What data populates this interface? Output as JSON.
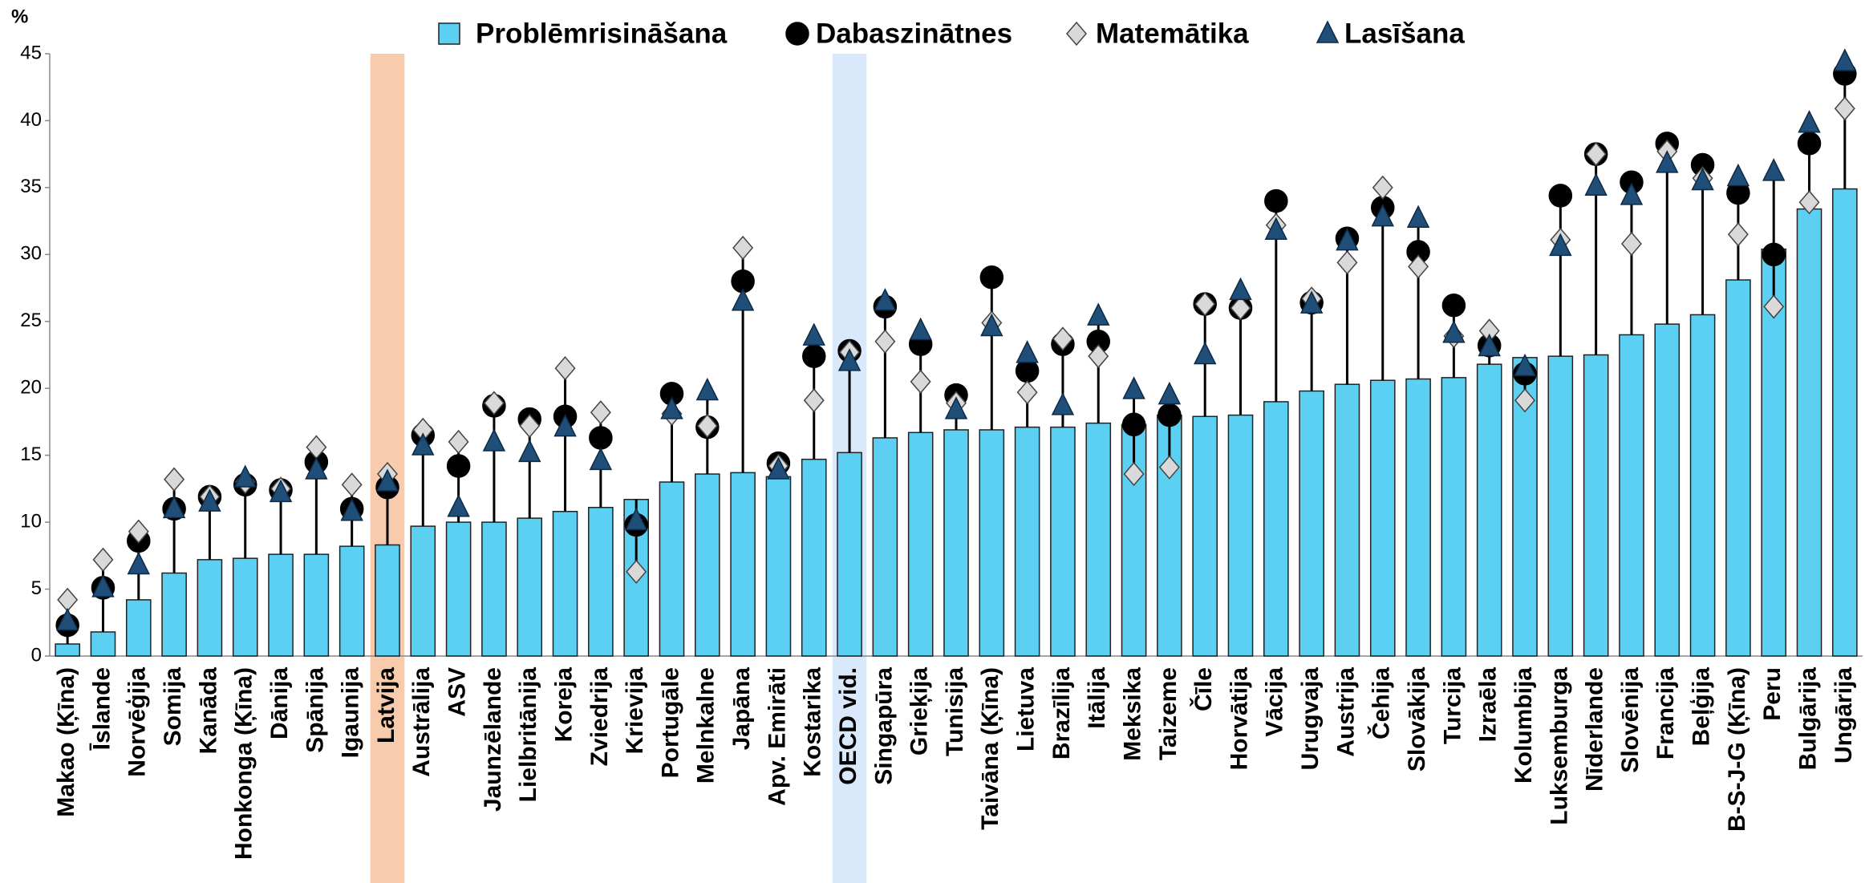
{
  "chart_data": {
    "type": "bar",
    "y_label": "%",
    "categories": [
      "Makao (Ķīna)",
      "Īslande",
      "Norvēģija",
      "Somija",
      "Kanāda",
      "Honkonga (Ķīna)",
      "Dānija",
      "Spānija",
      "Igaunija",
      "Latvija",
      "Austrālija",
      "ASV",
      "Jaunzēlande",
      "Lielbritānija",
      "Koreja",
      "Zviedrija",
      "Krievija",
      "Portugāle",
      "Melnkalne",
      "Japāna",
      "Apv. Emirāti",
      "Kostarika",
      "OECD vid.",
      "Singapūra",
      "Grieķija",
      "Tunisija",
      "Taivāna (Ķīna)",
      "Lietuva",
      "Brazīlija",
      "Itālija",
      "Meksika",
      "Taizeme",
      "Čīle",
      "Horvātija",
      "Vācija",
      "Urugvaja",
      "Austrija",
      "Čehija",
      "Slovākija",
      "Turcija",
      "Izraēla",
      "Kolumbija",
      "Luksemburga",
      "Nīderlande",
      "Slovēnija",
      "Francija",
      "Beļģija",
      "B-S-J-G (Ķīna)",
      "Peru",
      "Bulgārija",
      "Ungārija"
    ],
    "series": [
      {
        "name": "Problēmrisināšana",
        "marker": "bar",
        "color": "#5bd0f2",
        "values": [
          0.9,
          1.8,
          4.2,
          6.2,
          7.2,
          7.3,
          7.6,
          7.6,
          8.2,
          8.3,
          9.7,
          10.0,
          10.0,
          10.3,
          10.8,
          11.1,
          11.7,
          13.0,
          13.6,
          13.7,
          13.4,
          14.7,
          15.2,
          16.3,
          16.7,
          16.9,
          16.9,
          17.1,
          17.1,
          17.4,
          17.3,
          18.0,
          17.9,
          18.0,
          19.0,
          19.8,
          20.3,
          20.6,
          20.7,
          20.8,
          21.8,
          22.3,
          22.4,
          22.5,
          24.0,
          24.8,
          25.5,
          28.1,
          30.4,
          33.4,
          34.9
        ]
      },
      {
        "name": "Dabaszinātnes",
        "marker": "circle",
        "color": "#000000",
        "values": [
          2.3,
          5.1,
          8.6,
          11.0,
          11.9,
          12.8,
          12.4,
          14.5,
          11.0,
          12.6,
          16.5,
          14.2,
          18.7,
          17.7,
          17.9,
          16.3,
          9.8,
          19.6,
          17.1,
          28.0,
          14.4,
          22.4,
          22.8,
          26.1,
          23.3,
          19.5,
          28.3,
          21.3,
          23.3,
          23.5,
          17.3,
          18.0,
          26.3,
          26.0,
          34.0,
          26.4,
          31.2,
          33.5,
          30.2,
          26.2,
          23.2,
          21.1,
          34.4,
          37.5,
          35.4,
          38.3,
          36.7,
          34.6,
          30.0,
          38.3,
          43.5
        ]
      },
      {
        "name": "Matemātika",
        "marker": "diamond",
        "color": "#d9d9d9",
        "values": [
          4.2,
          7.2,
          9.3,
          13.2,
          11.9,
          13.0,
          12.5,
          15.6,
          12.8,
          13.6,
          16.9,
          16.0,
          18.9,
          17.2,
          21.5,
          18.2,
          6.3,
          18.1,
          17.2,
          30.5,
          14.2,
          19.1,
          22.7,
          23.5,
          20.5,
          18.9,
          24.9,
          19.7,
          23.7,
          22.4,
          13.6,
          14.1,
          26.3,
          26.0,
          32.2,
          26.7,
          29.4,
          35.0,
          29.1,
          23.9,
          24.3,
          19.1,
          31.1,
          37.5,
          30.8,
          37.7,
          35.7,
          31.5,
          26.1,
          33.9,
          40.9
        ]
      },
      {
        "name": "Lasīšana",
        "marker": "triangle",
        "color": "#1f4e79",
        "values": [
          2.6,
          5.1,
          6.8,
          11.0,
          11.5,
          13.3,
          12.2,
          13.9,
          10.8,
          13.0,
          15.7,
          11.1,
          16.0,
          15.2,
          17.1,
          14.6,
          10.1,
          18.4,
          19.8,
          26.5,
          13.9,
          23.9,
          22.0,
          26.5,
          24.3,
          18.4,
          24.6,
          22.6,
          18.7,
          25.4,
          19.9,
          19.5,
          22.5,
          27.3,
          31.8,
          26.3,
          31.0,
          32.8,
          32.7,
          24.1,
          23.1,
          21.6,
          30.6,
          35.1,
          34.4,
          36.8,
          35.5,
          35.8,
          36.2,
          39.8,
          44.4
        ]
      }
    ],
    "highlights": [
      {
        "index": 9,
        "color": "#f8cbad",
        "label_color": "#e07b39"
      },
      {
        "index": 22,
        "color": "#dae8fc",
        "label_color": "#4a7fc1"
      }
    ],
    "ylim": [
      0,
      45
    ],
    "yticks": [
      0,
      5,
      10,
      15,
      20,
      25,
      30,
      35,
      40,
      45
    ],
    "grid": false
  }
}
